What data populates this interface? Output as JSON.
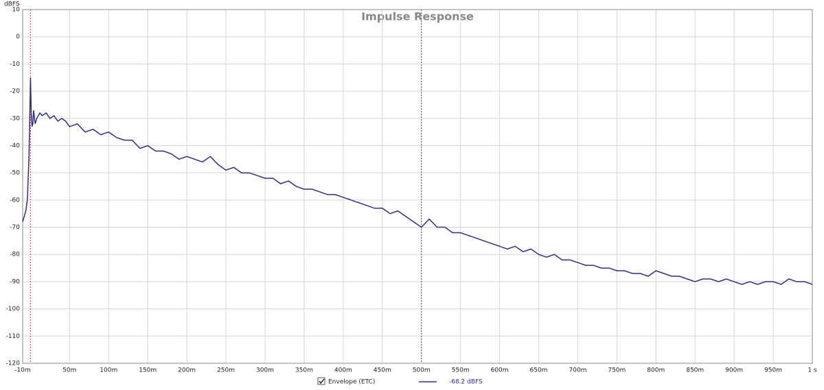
{
  "chart_data": {
    "type": "line",
    "title": "Impulse Response",
    "y_label": "dBFS",
    "xlim": [
      -0.01,
      1.0
    ],
    "ylim": [
      -120,
      10
    ],
    "xticks": [
      {
        "value": -0.01,
        "label": "-10m"
      },
      {
        "value": 0.05,
        "label": "50m"
      },
      {
        "value": 0.1,
        "label": "100m"
      },
      {
        "value": 0.15,
        "label": "150m"
      },
      {
        "value": 0.2,
        "label": "200m"
      },
      {
        "value": 0.25,
        "label": "250m"
      },
      {
        "value": 0.3,
        "label": "300m"
      },
      {
        "value": 0.35,
        "label": "350m"
      },
      {
        "value": 0.4,
        "label": "400m"
      },
      {
        "value": 0.45,
        "label": "450m"
      },
      {
        "value": 0.5,
        "label": "500m"
      },
      {
        "value": 0.55,
        "label": "550m"
      },
      {
        "value": 0.6,
        "label": "600m"
      },
      {
        "value": 0.65,
        "label": "650m"
      },
      {
        "value": 0.7,
        "label": "700m"
      },
      {
        "value": 0.75,
        "label": "750m"
      },
      {
        "value": 0.8,
        "label": "800m"
      },
      {
        "value": 0.85,
        "label": "850m"
      },
      {
        "value": 0.9,
        "label": "900m"
      },
      {
        "value": 0.95,
        "label": "950m"
      },
      {
        "value": 1.0,
        "label": "1 s"
      }
    ],
    "yticks": [
      10,
      0,
      -10,
      -20,
      -30,
      -40,
      -50,
      -60,
      -70,
      -80,
      -90,
      -100,
      -110,
      -120
    ],
    "grid": true,
    "markers": [
      {
        "x": 0.0,
        "color": "#c04040"
      },
      {
        "x": 0.5,
        "color": "#555555"
      }
    ],
    "x": [
      -0.01,
      -0.008,
      -0.006,
      -0.004,
      -0.002,
      -0.001,
      0.0,
      0.001,
      0.002,
      0.003,
      0.004,
      0.006,
      0.008,
      0.01,
      0.012,
      0.015,
      0.02,
      0.025,
      0.03,
      0.035,
      0.04,
      0.045,
      0.05,
      0.06,
      0.07,
      0.08,
      0.09,
      0.1,
      0.11,
      0.12,
      0.13,
      0.14,
      0.15,
      0.16,
      0.17,
      0.18,
      0.19,
      0.2,
      0.21,
      0.22,
      0.23,
      0.24,
      0.25,
      0.26,
      0.27,
      0.28,
      0.29,
      0.3,
      0.31,
      0.32,
      0.33,
      0.34,
      0.35,
      0.36,
      0.37,
      0.38,
      0.39,
      0.4,
      0.41,
      0.42,
      0.43,
      0.44,
      0.45,
      0.46,
      0.47,
      0.48,
      0.49,
      0.5,
      0.51,
      0.52,
      0.53,
      0.54,
      0.55,
      0.56,
      0.57,
      0.58,
      0.59,
      0.6,
      0.61,
      0.62,
      0.63,
      0.64,
      0.65,
      0.66,
      0.67,
      0.68,
      0.69,
      0.7,
      0.71,
      0.72,
      0.73,
      0.74,
      0.75,
      0.76,
      0.77,
      0.78,
      0.79,
      0.8,
      0.81,
      0.82,
      0.83,
      0.84,
      0.85,
      0.86,
      0.87,
      0.88,
      0.89,
      0.9,
      0.91,
      0.92,
      0.93,
      0.94,
      0.95,
      0.96,
      0.97,
      0.98,
      0.99,
      1.0
    ],
    "series": [
      {
        "name": "Envelope (ETC)",
        "color": "#2e2e7e",
        "readout": "-68.2 dBFS",
        "values": [
          -68,
          -66,
          -64,
          -60,
          -45,
          -32,
          -15,
          -28,
          -33,
          -32,
          -27,
          -32,
          -30,
          -29,
          -28,
          -29,
          -28,
          -30,
          -29,
          -31,
          -30,
          -31,
          -33,
          -32,
          -35,
          -34,
          -36,
          -35,
          -37,
          -38,
          -38,
          -41,
          -40,
          -42,
          -42,
          -43,
          -45,
          -44,
          -45,
          -46,
          -44,
          -47,
          -49,
          -48,
          -50,
          -50,
          -51,
          -52,
          -52,
          -54,
          -53,
          -55,
          -56,
          -56,
          -57,
          -58,
          -58,
          -59,
          -60,
          -61,
          -62,
          -63,
          -63,
          -65,
          -64,
          -66,
          -68,
          -70,
          -67,
          -70,
          -70,
          -72,
          -72,
          -73,
          -74,
          -75,
          -76,
          -77,
          -78,
          -77,
          -79,
          -78,
          -80,
          -81,
          -80,
          -82,
          -82,
          -83,
          -84,
          -84,
          -85,
          -85,
          -86,
          -86,
          -87,
          -87,
          -88,
          -86,
          -87,
          -88,
          -88,
          -89,
          -90,
          -89,
          -89,
          -90,
          -89,
          -90,
          -91,
          -90,
          -91,
          -90,
          -90,
          -91,
          -89,
          -90,
          -90,
          -91
        ]
      }
    ]
  }
}
